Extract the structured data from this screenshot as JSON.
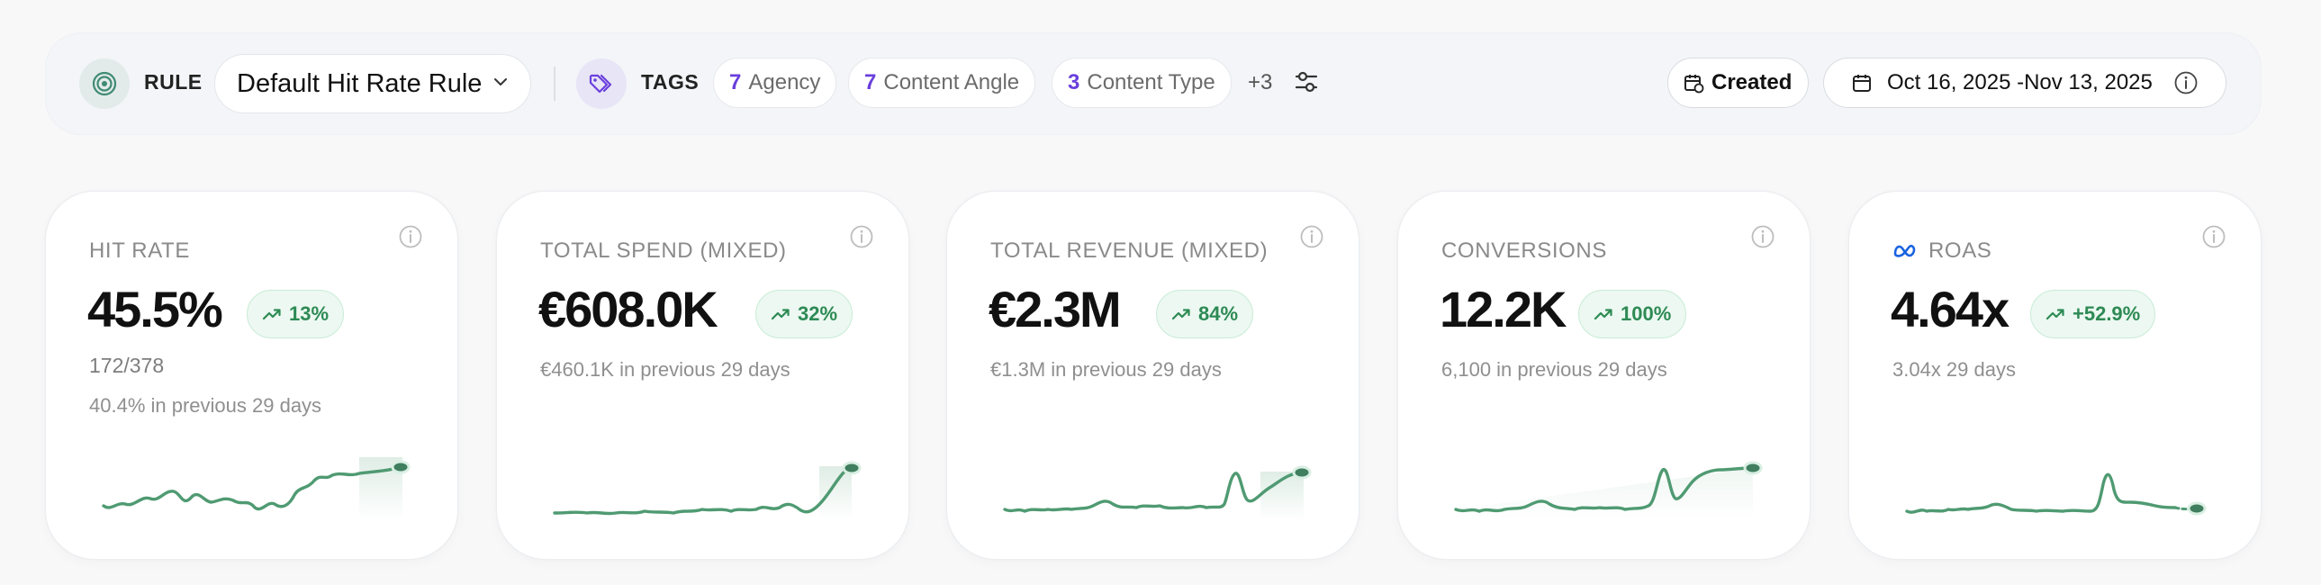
{
  "filters": {
    "rule_label": "RULE",
    "rule_value": "Default Hit Rate Rule",
    "tags_label": "TAGS",
    "tags": [
      {
        "count": "7",
        "label": "Agency"
      },
      {
        "count": "7",
        "label": "Content Angle"
      },
      {
        "count": "3",
        "label": "Content Type"
      }
    ],
    "more_tags": "+3",
    "created_label": "Created",
    "date_range": "Oct 16, 2025 -Nov 13, 2025"
  },
  "colors": {
    "accent_purple": "#6a3fdc",
    "sparkline_green": "#4f9a72",
    "badge_green": "#2d8a54"
  },
  "cards": [
    {
      "title": "HIT RATE",
      "value": "45.5%",
      "change": "13%",
      "extra": "172/378",
      "previous": "40.4% in previous 29 days"
    },
    {
      "title": "TOTAL SPEND (MIXED)",
      "value": "€608.0K",
      "change": "32%",
      "previous": "€460.1K in previous 29 days"
    },
    {
      "title": "TOTAL REVENUE (MIXED)",
      "value": "€2.3M",
      "change": "84%",
      "previous": "€1.3M in previous 29 days"
    },
    {
      "title": "CONVERSIONS",
      "value": "12.2K",
      "change": "100%",
      "previous": "6,100 in previous 29 days"
    },
    {
      "title": "ROAS",
      "value": "4.64x",
      "change": "+52.9%",
      "previous": "3.04x 29 days",
      "icon": "meta-logo-icon"
    }
  ]
}
